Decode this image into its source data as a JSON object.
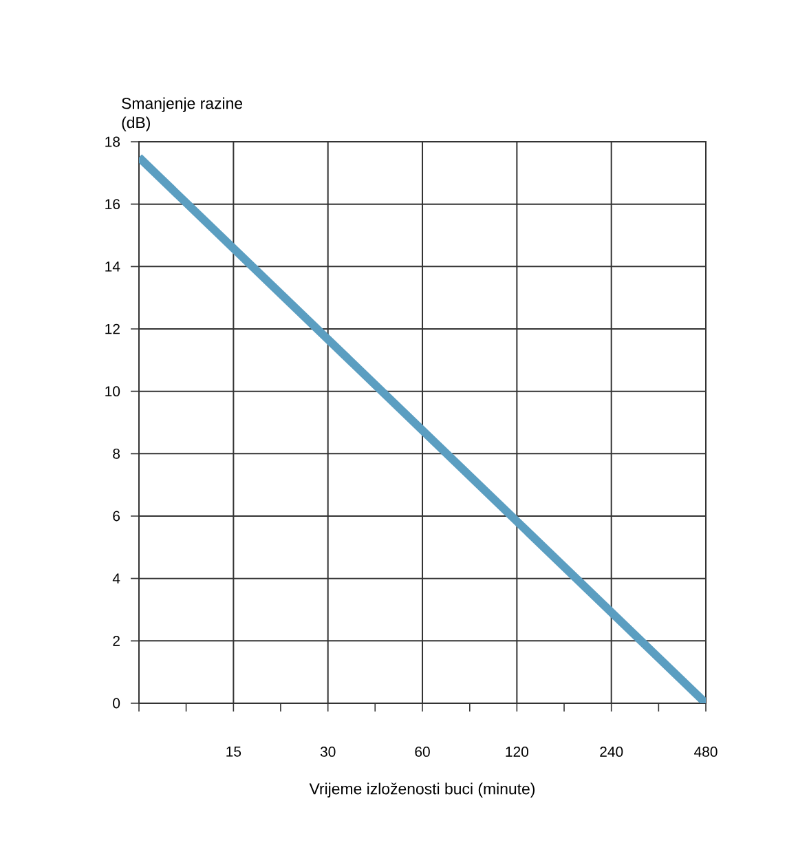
{
  "chart_data": {
    "type": "line",
    "xlabel": "Vrijeme izloženosti buci (minute)",
    "ylabel": "Smanjenje razine\n(dB)",
    "log": "x",
    "xlim": [
      7.5,
      480
    ],
    "ylim": [
      0,
      18
    ],
    "xticks": [
      {
        "value": 7.5,
        "label": null
      },
      {
        "value": 10.6,
        "label": null
      },
      15,
      {
        "value": 21.2,
        "label": null
      },
      30,
      {
        "value": 42.4,
        "label": null
      },
      60,
      {
        "value": 84.9,
        "label": null
      },
      120,
      {
        "value": 169.7,
        "label": null
      },
      240,
      {
        "value": 339.4,
        "label": null
      },
      480
    ],
    "yticks": [
      0,
      2,
      4,
      6,
      8,
      10,
      12,
      14,
      16,
      18
    ],
    "grid": true,
    "marker": "none",
    "line_style": "solid",
    "series": [
      {
        "color": "#5b9ec1",
        "x": [
          7.5,
          480
        ],
        "values": [
          17.5,
          0
        ]
      }
    ]
  }
}
